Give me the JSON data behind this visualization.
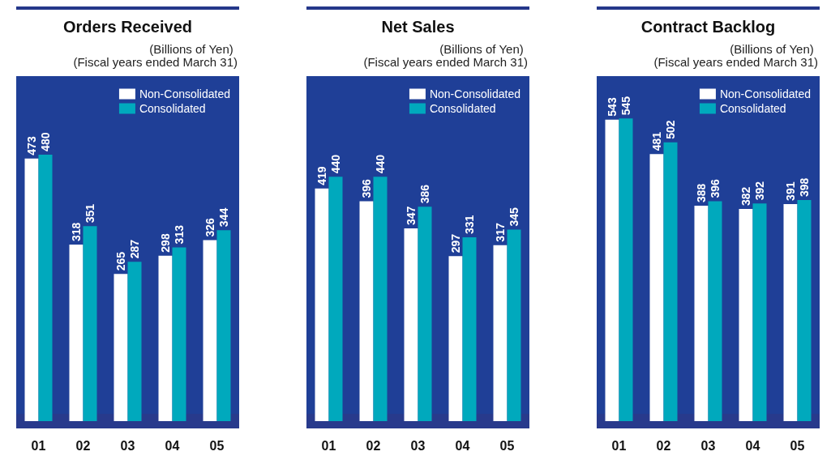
{
  "chart_data": [
    {
      "type": "bar",
      "title": "Orders Received",
      "subtitle": "(Billions of Yen)",
      "annotations": [
        "(Fiscal years ended March 31)"
      ],
      "categories": [
        "01",
        "02",
        "03",
        "04",
        "05"
      ],
      "series": [
        {
          "name": "Non-Consolidated",
          "color": "#ffffff",
          "values": [
            473,
            318,
            265,
            298,
            326
          ]
        },
        {
          "name": "Consolidated",
          "color": "#00a9bd",
          "values": [
            480,
            351,
            287,
            313,
            344
          ]
        }
      ],
      "data_labels": true,
      "legend": "top right"
    },
    {
      "type": "bar",
      "title": "Net Sales",
      "subtitle": "(Billions of Yen)",
      "annotations": [
        "(Fiscal years ended March 31)"
      ],
      "categories": [
        "01",
        "02",
        "03",
        "04",
        "05"
      ],
      "series": [
        {
          "name": "Non-Consolidated",
          "color": "#ffffff",
          "values": [
            419,
            396,
            347,
            297,
            317
          ]
        },
        {
          "name": "Consolidated",
          "color": "#00a9bd",
          "values": [
            440,
            440,
            386,
            331,
            345
          ]
        }
      ],
      "data_labels": true,
      "legend": "top right"
    },
    {
      "type": "bar",
      "title": "Contract Backlog",
      "subtitle": "(Billions of Yen)",
      "annotations": [
        "(Fiscal years ended March 31)"
      ],
      "categories": [
        "01",
        "02",
        "03",
        "04",
        "05"
      ],
      "series": [
        {
          "name": "Non-Consolidated",
          "color": "#ffffff",
          "values": [
            543,
            481,
            388,
            382,
            391
          ]
        },
        {
          "name": "Consolidated",
          "color": "#00a9bd",
          "values": [
            545,
            502,
            396,
            392,
            398
          ]
        }
      ],
      "data_labels": true,
      "legend": "top right"
    }
  ]
}
